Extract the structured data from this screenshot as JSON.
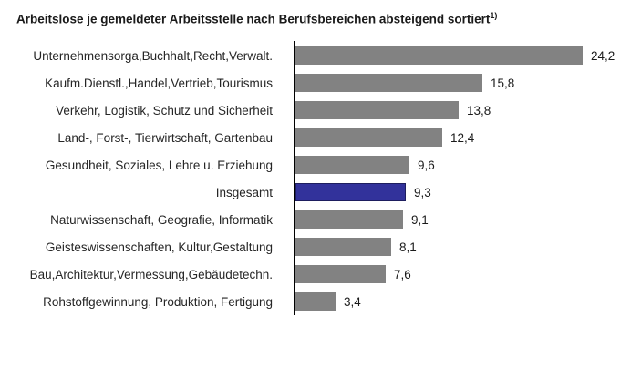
{
  "chart": {
    "title": "Arbeitslose je gemeldeter Arbeitsstelle nach Berufsbereichen absteigend sortiert",
    "footnote_marker": "1)"
  },
  "chart_data": {
    "type": "bar",
    "orientation": "horizontal",
    "title": "Arbeitslose je gemeldeter Arbeitsstelle nach Berufsbereichen absteigend sortiert 1)",
    "categories": [
      "Unternehmensorga,Buchhalt,Recht,Verwalt.",
      "Kaufm.Dienstl.,Handel,Vertrieb,Tourismus",
      "Verkehr, Logistik, Schutz und Sicherheit",
      "Land-, Forst-, Tierwirtschaft, Gartenbau",
      "Gesundheit, Soziales, Lehre u. Erziehung",
      "Insgesamt",
      "Naturwissenschaft, Geografie, Informatik",
      "Geisteswissenschaften, Kultur,Gestaltung",
      "Bau,Architektur,Vermessung,Gebäudetechn.",
      "Rohstoffgewinnung, Produktion, Fertigung"
    ],
    "values": [
      24.2,
      15.8,
      13.8,
      12.4,
      9.6,
      9.3,
      9.1,
      8.1,
      7.6,
      3.4
    ],
    "value_labels": [
      "24,2",
      "15,8",
      "13,8",
      "12,4",
      "9,6",
      "9,3",
      "9,1",
      "8,1",
      "7,6",
      "3,4"
    ],
    "highlight_category": "Insgesamt",
    "sort": "descending",
    "xlim": [
      0,
      25
    ],
    "grid": false,
    "legend": false,
    "colors": {
      "bar": "#828282",
      "highlight": "#32329B",
      "highlight_border": "#1E1E5F",
      "axis": "#000000"
    }
  }
}
